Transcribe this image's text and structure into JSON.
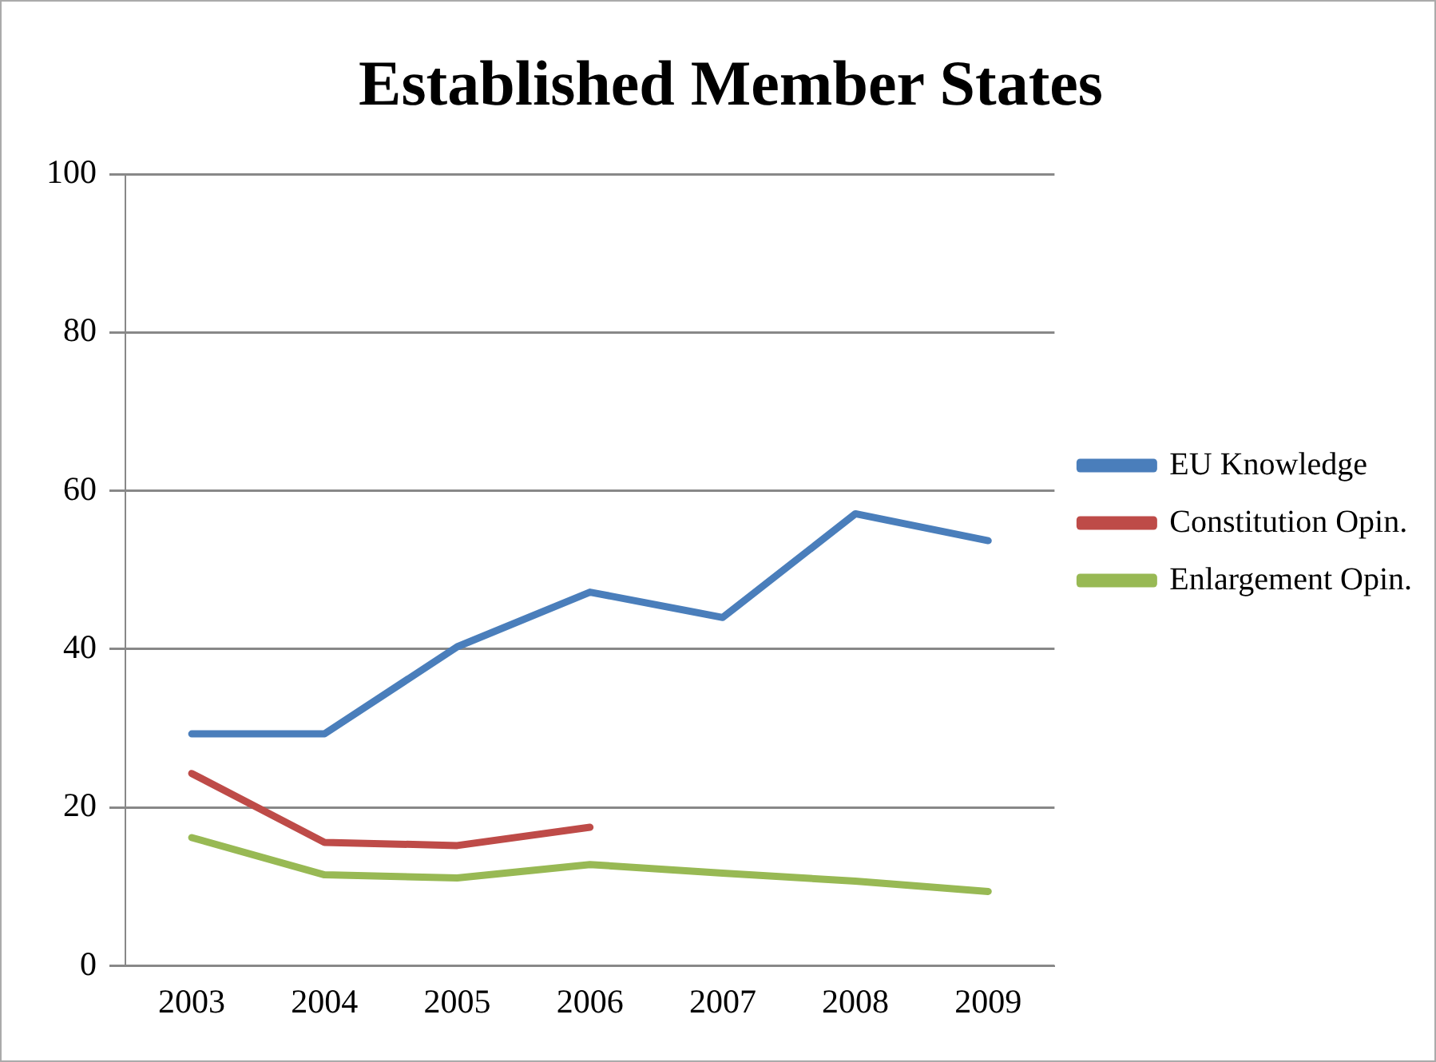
{
  "chart_data": {
    "type": "line",
    "title": "Established Member States",
    "categories": [
      "2003",
      "2004",
      "2005",
      "2006",
      "2007",
      "2008",
      "2009"
    ],
    "series": [
      {
        "name": "EU Knowledge",
        "color": "#4a7ebb",
        "values": [
          29.3,
          29.3,
          40.3,
          47.2,
          44.0,
          57.1,
          53.7
        ]
      },
      {
        "name": "Constitution Opin.",
        "color": "#be4b48",
        "values": [
          24.3,
          15.6,
          15.2,
          17.5,
          null,
          null,
          null
        ]
      },
      {
        "name": "Enlargement Opin.",
        "color": "#98b954",
        "values": [
          16.2,
          11.5,
          11.1,
          12.8,
          11.7,
          10.7,
          9.4
        ]
      }
    ],
    "ylim": [
      0,
      100
    ],
    "yticks": [
      0,
      20,
      40,
      60,
      80,
      100
    ],
    "grid": "y",
    "legend": "right",
    "marker": "none",
    "line_style": "solid"
  }
}
